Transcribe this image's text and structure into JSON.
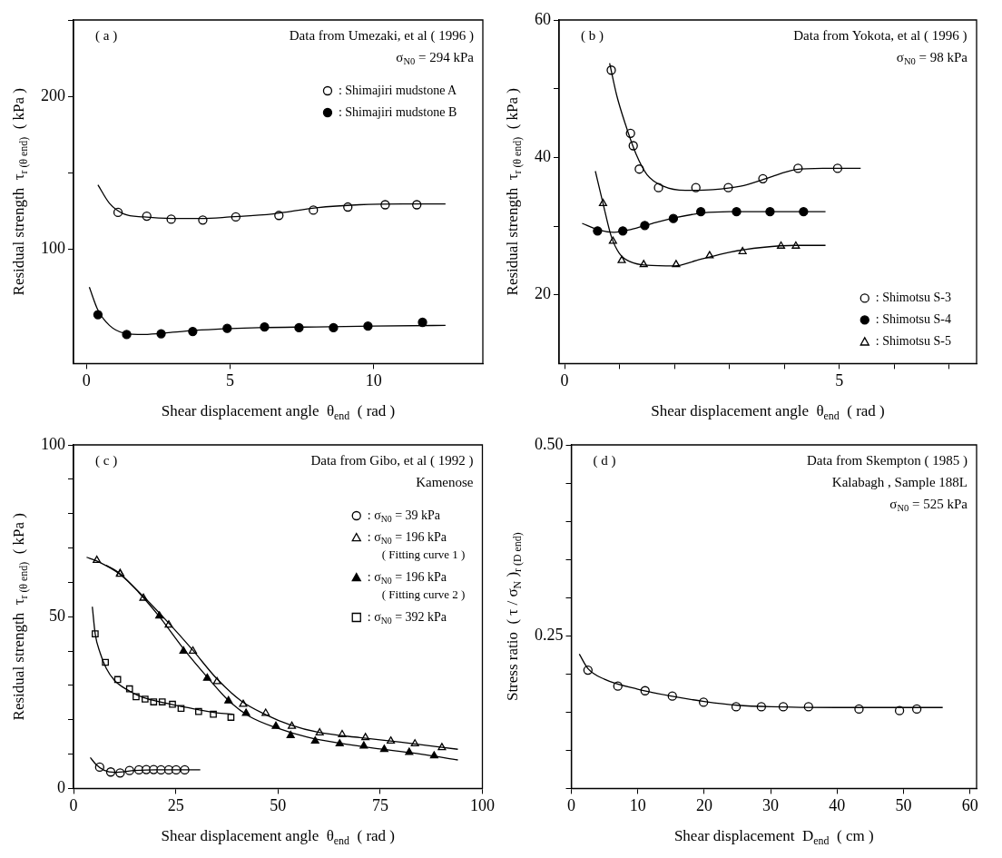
{
  "chart_data": [
    {
      "type": "scatter",
      "xlabel": "Shear displacement angle  θ$_{end}$  ( rad )",
      "ylabel": "Residual strength  τ$_{r (θ end)}$  ( kPa )",
      "annotations": [
        "( a )",
        "Data from Umezaki, et al ( 1996 )",
        "σ$_{N0}$ = 294 kPa"
      ],
      "xlim": [
        -0.45,
        13.8
      ],
      "xticks": [
        0,
        5,
        10
      ],
      "ylim": [
        25,
        250
      ],
      "yticks": [
        100,
        {
          "value": 150,
          "label": null
        },
        200,
        {
          "value": 250,
          "label": null
        }
      ],
      "legend": "top right",
      "series": [
        {
          "type": "line",
          "marker": "none",
          "color": "#000000",
          "x": [
            0.4,
            0.8,
            1.3,
            2,
            3,
            4,
            5,
            6.5,
            8,
            9.5,
            11,
            12.5
          ],
          "values": [
            142,
            130,
            123,
            121,
            120,
            120,
            121,
            123,
            127,
            129,
            129.5,
            129.5
          ]
        },
        {
          "type": "line",
          "marker": "none",
          "color": "#000000",
          "x": [
            0.1,
            0.4,
            0.8,
            1.3,
            2,
            3,
            4,
            6,
            8,
            10,
            12.5
          ],
          "values": [
            75,
            60,
            50,
            45,
            44,
            45.5,
            47,
            48.5,
            49,
            49.5,
            50
          ]
        },
        {
          "name": ": Shimajiri mudstone A",
          "marker": "circle",
          "color": "#ffffff",
          "x": [
            1.1,
            2.1,
            2.95,
            4.05,
            5.2,
            6.7,
            7.9,
            9.1,
            10.4,
            11.5
          ],
          "values": [
            124,
            121.5,
            119.5,
            119,
            121,
            122,
            125.5,
            127.5,
            129,
            129
          ]
        },
        {
          "name": ": Shimajiri mudstone B",
          "marker": "circle",
          "color": "#000000",
          "x": [
            0.4,
            1.4,
            2.6,
            3.7,
            4.9,
            6.2,
            7.4,
            8.6,
            9.8,
            11.7
          ],
          "values": [
            57,
            44,
            44.5,
            46,
            48,
            49,
            48.5,
            48.5,
            49.5,
            52
          ]
        }
      ]
    },
    {
      "type": "scatter",
      "xlabel": "Shear displacement angle  θ$_{end}$  ( rad )",
      "ylabel": "Residual strength  τ$_{r (θ end)}$  ( kPa )",
      "annotations": [
        "( b )",
        "Data from Yokota, et al ( 1996 )",
        "σ$_{N0}$ = 98 kPa"
      ],
      "xlim": [
        -0.1,
        7.5
      ],
      "xticks": [
        0,
        {
          "value": 1,
          "label": null
        },
        {
          "value": 2,
          "label": null
        },
        {
          "value": 3,
          "label": null
        },
        {
          "value": 4,
          "label": null
        },
        5,
        {
          "value": 6,
          "label": null
        },
        {
          "value": 7,
          "label": null
        }
      ],
      "ylim": [
        10,
        60
      ],
      "yticks": [
        20,
        {
          "value": 30,
          "label": null
        },
        40,
        {
          "value": 50,
          "label": null
        },
        60
      ],
      "legend": "bottom right",
      "series": [
        {
          "type": "line",
          "marker": "none",
          "color": "#000000",
          "x": [
            0.82,
            0.95,
            1.1,
            1.3,
            1.5,
            1.8,
            2.2,
            2.7,
            3.2,
            3.7,
            4.2,
            4.7,
            5.39
          ],
          "values": [
            53.7,
            49,
            45,
            40.5,
            37.5,
            35.8,
            35.2,
            35.3,
            35.8,
            37,
            38.2,
            38.4,
            38.4
          ]
        },
        {
          "type": "line",
          "marker": "none",
          "color": "#000000",
          "x": [
            0.32,
            0.6,
            0.9,
            1.2,
            1.6,
            2,
            2.5,
            3,
            4.75
          ],
          "values": [
            30.4,
            29.5,
            29.1,
            29.5,
            30.4,
            31.2,
            31.9,
            32.1,
            32.1
          ]
        },
        {
          "type": "line",
          "marker": "none",
          "color": "#000000",
          "x": [
            0.56,
            0.7,
            0.85,
            1,
            1.2,
            1.5,
            2,
            2.4,
            3,
            3.6,
            4.2,
            4.75
          ],
          "values": [
            38,
            33.3,
            28.5,
            26,
            24.8,
            24.3,
            24.2,
            25,
            26.2,
            26.9,
            27.2,
            27.2
          ]
        },
        {
          "name": ": Shimotsu S-3",
          "marker": "circle",
          "color": "#ffffff",
          "x": [
            0.85,
            1.2,
            1.25,
            1.36,
            1.71,
            2.39,
            2.98,
            3.61,
            4.25,
            4.97
          ],
          "values": [
            52.7,
            43.5,
            41.7,
            38.3,
            35.6,
            35.6,
            35.6,
            36.9,
            38.4,
            38.4
          ]
        },
        {
          "name": ": Shimotsu S-4",
          "marker": "circle",
          "color": "#000000",
          "x": [
            0.6,
            1.06,
            1.46,
            1.98,
            2.48,
            3.13,
            3.74,
            4.35
          ],
          "values": [
            29.3,
            29.3,
            30.1,
            31.1,
            32.1,
            32.1,
            32.1,
            32.1
          ]
        },
        {
          "name": ": Shimotsu S-5",
          "marker": "triangle",
          "color": "#ffffff",
          "x": [
            0.7,
            0.88,
            1.04,
            1.44,
            2.03,
            2.64,
            3.24,
            3.94,
            4.21
          ],
          "values": [
            33.3,
            27.8,
            25,
            24.4,
            24.4,
            25.7,
            26.3,
            27.1,
            27.1
          ]
        }
      ]
    },
    {
      "type": "scatter",
      "xlabel": "Shear displacement angle  θ$_{end}$  ( rad )",
      "ylabel": "Residual strength  τ$_{r (θ end)}$  ( kPa )",
      "annotations": [
        "( c )",
        "Data from Gibo, et al ( 1992 )",
        "Kamenose"
      ],
      "xlim": [
        0,
        100
      ],
      "xticks": [
        0,
        25,
        50,
        75,
        100
      ],
      "ylim": [
        0,
        100
      ],
      "yticks": [
        0,
        {
          "value": 10,
          "label": null
        },
        {
          "value": 20,
          "label": null
        },
        {
          "value": 30,
          "label": null
        },
        {
          "value": 40,
          "label": null
        },
        50,
        {
          "value": 60,
          "label": null
        },
        {
          "value": 70,
          "label": null
        },
        {
          "value": 80,
          "label": null
        },
        {
          "value": 90,
          "label": null
        },
        100
      ],
      "legend": "top right",
      "series": [
        {
          "type": "line",
          "marker": "none",
          "color": "#000000",
          "x": [
            4.1,
            5.5,
            7.5,
            10,
            15,
            20,
            31
          ],
          "values": [
            9,
            7,
            5.3,
            4.7,
            5.2,
            5.4,
            5.4
          ]
        },
        {
          "type": "line",
          "marker": "none",
          "color": "#000000",
          "x": [
            3.2,
            5.7,
            11.4,
            17,
            23,
            29,
            35,
            41,
            47,
            53,
            60,
            70,
            80,
            94
          ],
          "values": [
            67.3,
            66.2,
            62.3,
            56,
            48.5,
            40.5,
            32,
            25.5,
            21.5,
            18.5,
            16.3,
            14.8,
            13.5,
            11.4
          ]
        },
        {
          "type": "line",
          "marker": "none",
          "color": "#000000",
          "x": [
            8,
            11.4,
            16,
            21,
            27,
            33,
            38,
            43,
            50,
            57,
            65,
            75,
            85,
            94
          ],
          "values": [
            65,
            62.5,
            57,
            50,
            40.5,
            32,
            25.5,
            21,
            17.5,
            15,
            13.2,
            11.5,
            10,
            8.3
          ]
        },
        {
          "type": "line",
          "marker": "none",
          "color": "#000000",
          "x": [
            4.6,
            5.3,
            6.5,
            8,
            10,
            13,
            17,
            22,
            28,
            35,
            39
          ],
          "values": [
            52.9,
            45,
            39.5,
            35,
            31.5,
            28.8,
            26.5,
            25,
            23.5,
            22,
            21.6
          ]
        },
        {
          "name": ": σ$_{N0}$ = 39 kPa",
          "marker": "circle",
          "color": "#ffffff",
          "x": [
            6.4,
            9.1,
            11.4,
            13.7,
            16,
            17.8,
            19.6,
            21.4,
            23.3,
            25.1,
            27.2
          ],
          "values": [
            6.2,
            4.8,
            4.5,
            5.2,
            5.4,
            5.5,
            5.5,
            5.4,
            5.4,
            5.4,
            5.4
          ]
        },
        {
          "name": ": σ$_{N0}$ = 196 kPa\n( Fitting curve 1 )",
          "marker": "triangle",
          "color": "#ffffff",
          "x": [
            5.7,
            11.4,
            17.1,
            23.3,
            29.2,
            35.1,
            41.5,
            47,
            53.4,
            60.2,
            65.7,
            71.4,
            77.6,
            83.5,
            90.1
          ],
          "values": [
            66.4,
            62.4,
            55.4,
            47.6,
            40,
            31.1,
            24.5,
            21.9,
            18.1,
            16.2,
            15.7,
            14.8,
            13.8,
            13,
            11.9
          ]
        },
        {
          "name": ": σ$_{N0}$ = 196 kPa\n( Fitting curve 2 )",
          "marker": "triangle",
          "color": "#000000",
          "x": [
            11.4,
            21,
            26.9,
            32.7,
            37.9,
            42.2,
            49.5,
            53.1,
            59.1,
            65.1,
            71,
            76,
            82.1,
            88.2
          ],
          "values": [
            62.6,
            50.2,
            40,
            32.1,
            25.5,
            21.9,
            18.1,
            15.4,
            13.8,
            13,
            12.4,
            11.4,
            10.5,
            9.5
          ]
        },
        {
          "name": ": σ$_{N0}$ = 392 kPa",
          "marker": "square",
          "color": "#ffffff",
          "x": [
            5.3,
            7.8,
            10.8,
            13.7,
            15.3,
            17.5,
            19.6,
            21.7,
            24.2,
            26.3,
            30.6,
            34.2,
            38.5
          ],
          "values": [
            45,
            36.7,
            31.7,
            29,
            26.7,
            26,
            25.2,
            25.2,
            24.5,
            23.3,
            22.4,
            21.6,
            20.7
          ]
        }
      ]
    },
    {
      "type": "scatter",
      "xlabel": "Shear displacement  D$_{end}$  ( cm )",
      "ylabel": "Stress ratio  ( τ / σ$_{N}$ )$_{r (D end)}$",
      "annotations": [
        "( d )",
        "Data from Skempton ( 1985 )",
        "Kalabagh , Sample 188L",
        "σ$_{N0}$ = 525 kPa"
      ],
      "xlim": [
        0,
        61
      ],
      "xticks": [
        0,
        10,
        20,
        30,
        40,
        50,
        60
      ],
      "ylim": [
        0.05,
        0.5
      ],
      "yticks": [
        {
          "value": 0.05,
          "label": null
        },
        {
          "value": 0.1,
          "label": null
        },
        {
          "value": 0.15,
          "label": null
        },
        {
          "value": 0.2,
          "label": null
        },
        {
          "value": 0.25,
          "label": "0.25"
        },
        {
          "value": 0.3,
          "label": null
        },
        {
          "value": 0.35,
          "label": null
        },
        {
          "value": 0.4,
          "label": null
        },
        {
          "value": 0.45,
          "label": null
        },
        {
          "value": 0.5,
          "label": "0.50"
        }
      ],
      "series": [
        {
          "type": "line",
          "marker": "none",
          "color": "#000000",
          "x": [
            1.2,
            2.5,
            5,
            10,
            15,
            20,
            25,
            30,
            40,
            55.9
          ],
          "values": [
            0.226,
            0.207,
            0.193,
            0.18,
            0.171,
            0.164,
            0.159,
            0.157,
            0.156,
            0.156
          ]
        },
        {
          "marker": "circle",
          "color": "#ffffff",
          "x": [
            2.5,
            7,
            11.1,
            15.2,
            19.9,
            24.8,
            28.6,
            31.9,
            35.7,
            43.3,
            49.4,
            52
          ],
          "values": [
            0.205,
            0.184,
            0.178,
            0.171,
            0.163,
            0.157,
            0.157,
            0.157,
            0.157,
            0.154,
            0.152,
            0.154
          ]
        }
      ]
    }
  ]
}
